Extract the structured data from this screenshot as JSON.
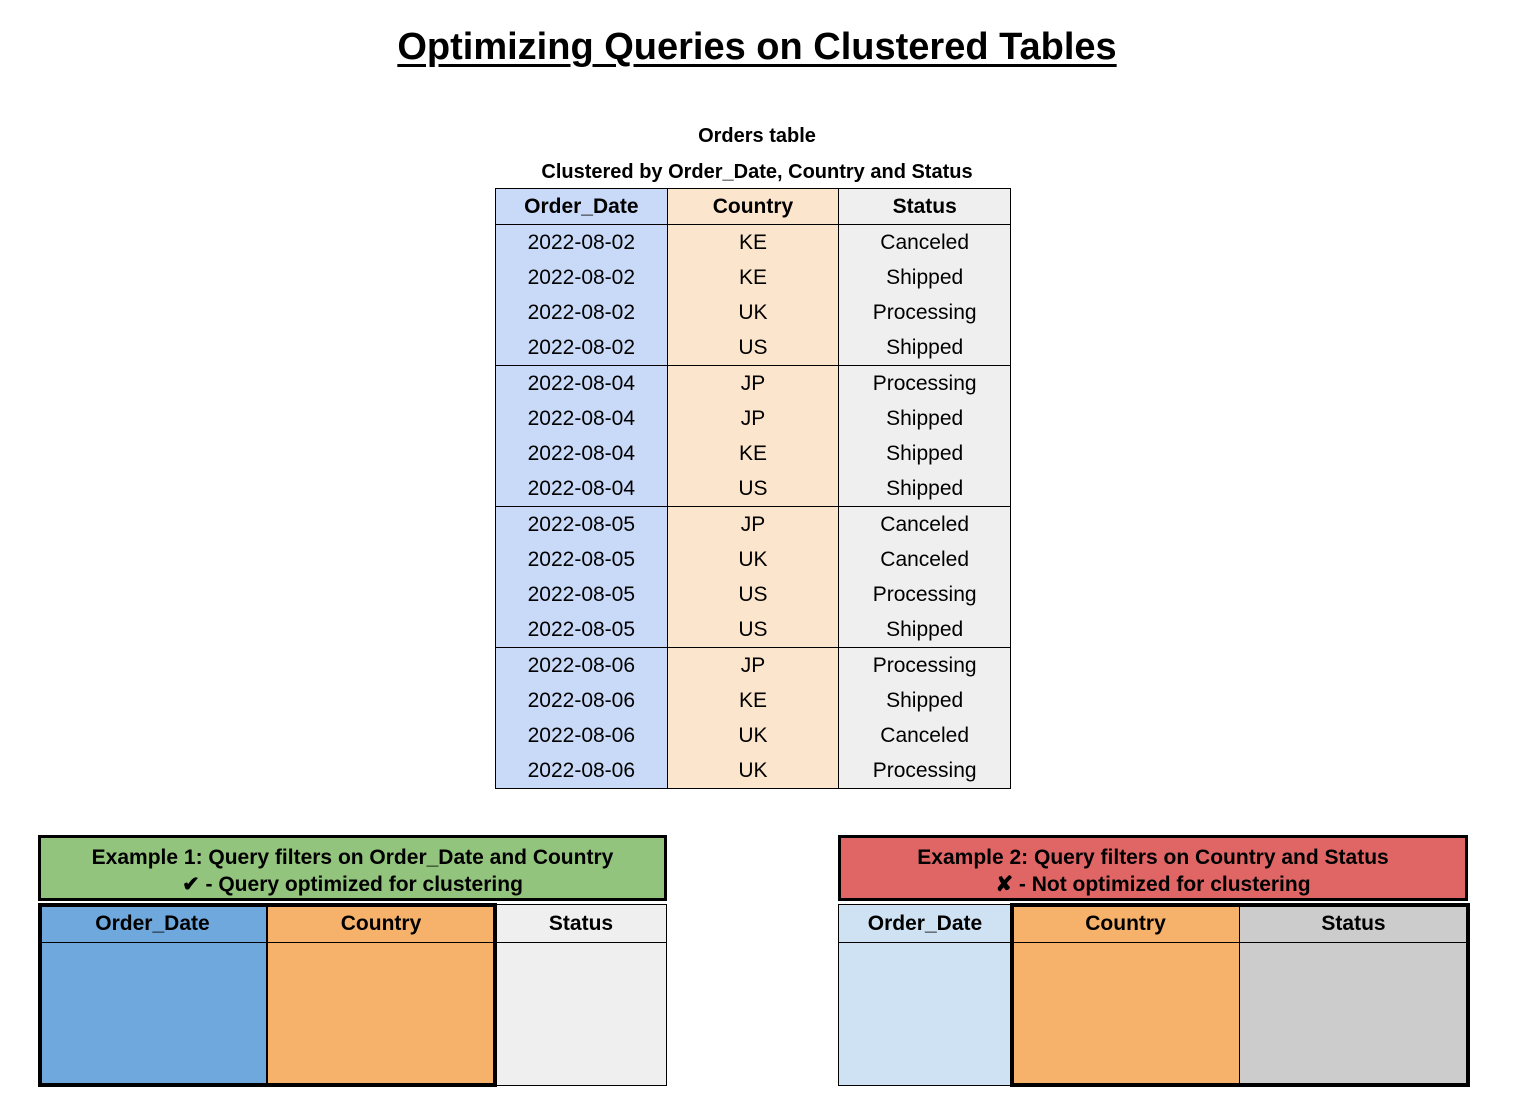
{
  "title": "Optimizing Queries on Clustered Tables",
  "orders_table": {
    "caption": "Orders table",
    "subcaption": "Clustered by Order_Date, Country and Status",
    "columns": [
      "Order_Date",
      "Country",
      "Status"
    ],
    "column_colors": [
      "#c9daf8",
      "#fce5cd",
      "#efefef"
    ],
    "rows": [
      [
        "2022-08-02",
        "KE",
        "Canceled"
      ],
      [
        "2022-08-02",
        "KE",
        "Shipped"
      ],
      [
        "2022-08-02",
        "UK",
        "Processing"
      ],
      [
        "2022-08-02",
        "US",
        "Shipped"
      ],
      [
        "2022-08-04",
        "JP",
        "Processing"
      ],
      [
        "2022-08-04",
        "JP",
        "Shipped"
      ],
      [
        "2022-08-04",
        "KE",
        "Shipped"
      ],
      [
        "2022-08-04",
        "US",
        "Shipped"
      ],
      [
        "2022-08-05",
        "JP",
        "Canceled"
      ],
      [
        "2022-08-05",
        "UK",
        "Canceled"
      ],
      [
        "2022-08-05",
        "US",
        "Processing"
      ],
      [
        "2022-08-05",
        "US",
        "Shipped"
      ],
      [
        "2022-08-06",
        "JP",
        "Processing"
      ],
      [
        "2022-08-06",
        "KE",
        "Shipped"
      ],
      [
        "2022-08-06",
        "UK",
        "Canceled"
      ],
      [
        "2022-08-06",
        "UK",
        "Processing"
      ]
    ]
  },
  "example1": {
    "title": "Example 1: Query filters on Order_Date and Country",
    "subtitle": "✔ - Query optimized for clustering",
    "header_color": "#93c47d",
    "columns": [
      "Order_Date",
      "Country",
      "Status"
    ],
    "column_colors": [
      "#6fa8dc",
      "#f6b26b",
      "#efefef"
    ],
    "highlighted_columns": [
      "Order_Date",
      "Country"
    ]
  },
  "example2": {
    "title": "Example 2: Query filters on Country and Status",
    "subtitle": "✘ - Not optimized for clustering",
    "header_color": "#e06666",
    "columns": [
      "Order_Date",
      "Country",
      "Status"
    ],
    "column_colors": [
      "#cfe2f3",
      "#f6b26b",
      "#cccccc"
    ],
    "highlighted_columns": [
      "Country",
      "Status"
    ]
  }
}
